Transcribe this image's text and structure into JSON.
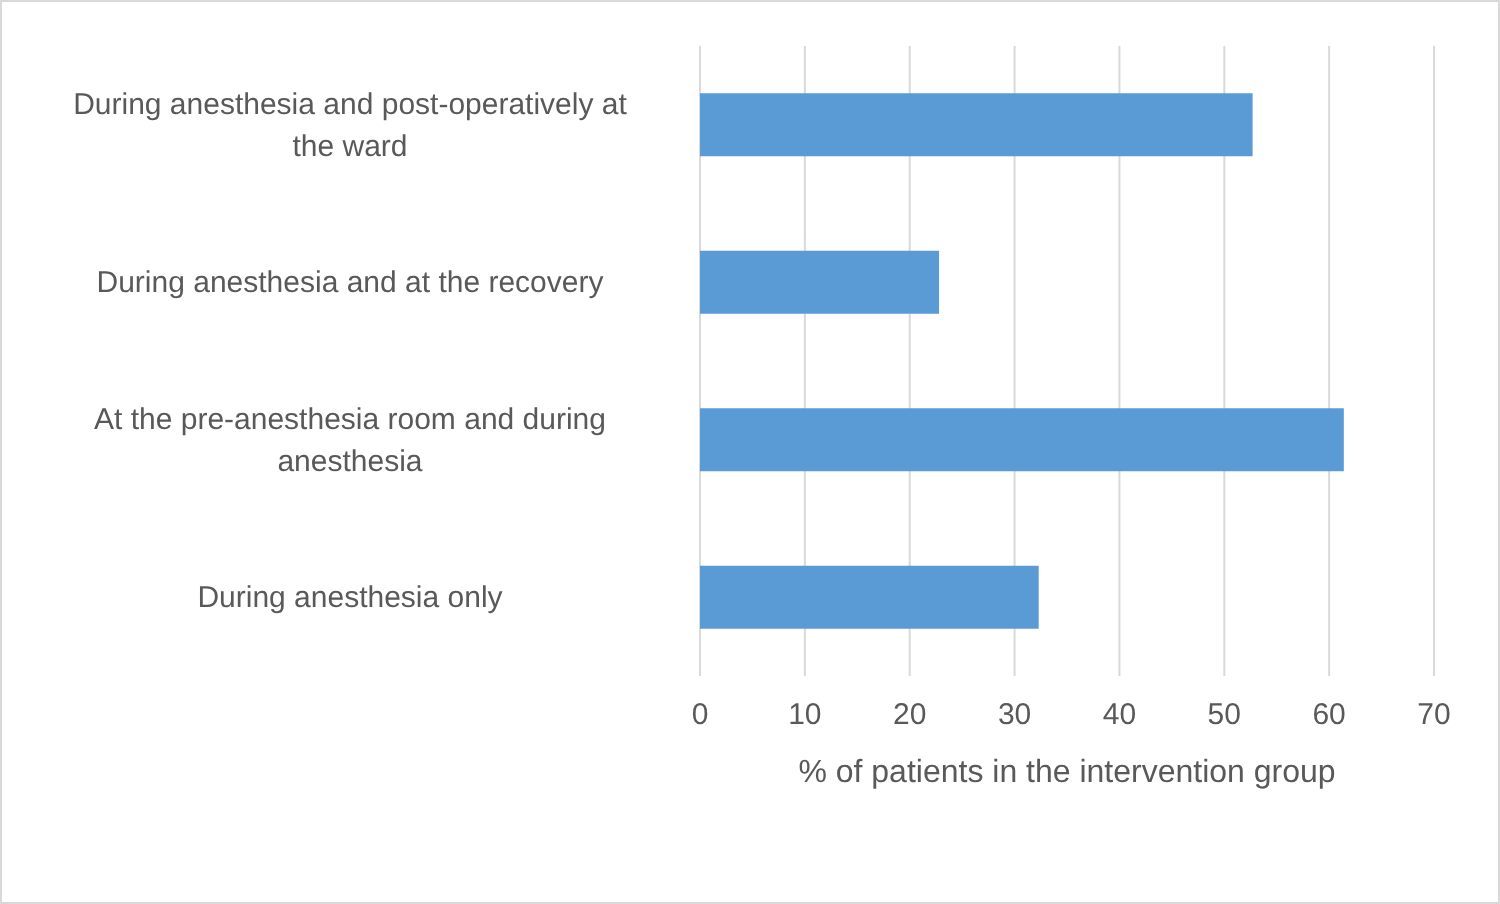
{
  "chart_data": {
    "type": "bar",
    "orientation": "horizontal",
    "xlabel": "% of patients in the intervention group",
    "categories": [
      "During anesthesia and post-operatively at the ward",
      "During anesthesia and at the recovery",
      "At the pre-anesthesia room and during anesthesia",
      "During anesthesia only"
    ],
    "values": [
      52.7,
      22.8,
      61.4,
      32.3
    ],
    "color": "#5b9bd5",
    "xlim": [
      0,
      70
    ],
    "xticks": [
      0,
      10,
      20,
      30,
      40,
      50,
      60,
      70
    ],
    "grid": "x"
  }
}
